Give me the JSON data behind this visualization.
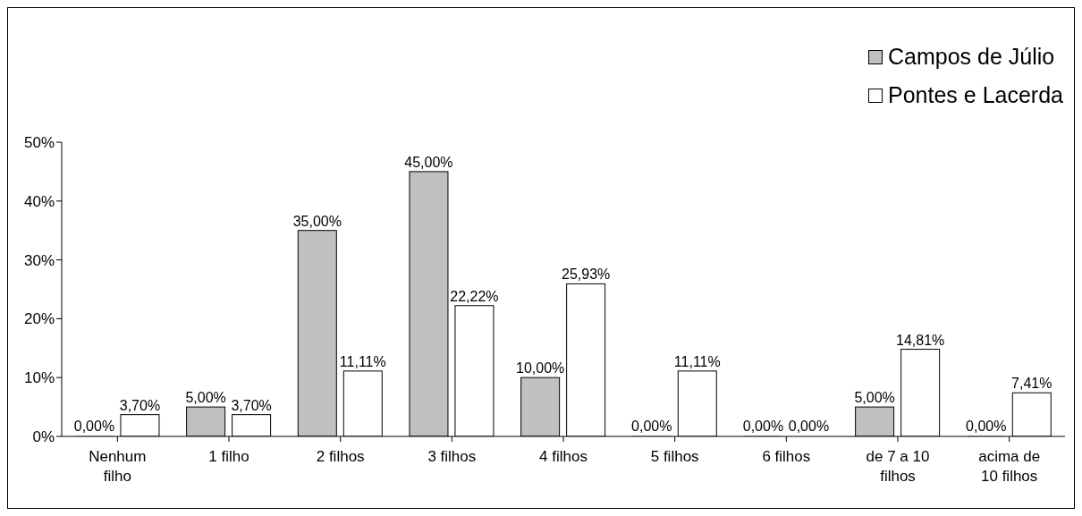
{
  "chart_data": {
    "type": "bar",
    "categories": [
      "Nenhum filho",
      "1 filho",
      "2 filhos",
      "3 filhos",
      "4 filhos",
      "5 filhos",
      "6 filhos",
      "de 7 a 10 filhos",
      "acima de 10 filhos"
    ],
    "series": [
      {
        "name": "Campos de Júlio",
        "color": "#c0c0c0",
        "values": [
          0,
          5,
          35,
          45,
          10,
          0,
          0,
          5,
          0
        ],
        "value_labels": [
          "0,00%",
          "5,00%",
          "35,00%",
          "45,00%",
          "10,00%",
          "0,00%",
          "0,00%",
          "5,00%",
          "0,00%"
        ]
      },
      {
        "name": "Pontes e Lacerda",
        "color": "#ffffff",
        "values": [
          3.7,
          3.7,
          11.11,
          22.22,
          25.93,
          11.11,
          0,
          14.81,
          7.41
        ],
        "value_labels": [
          "3,70%",
          "3,70%",
          "11,11%",
          "22,22%",
          "25,93%",
          "11,11%",
          "0,00%",
          "14,81%",
          "7,41%"
        ]
      }
    ],
    "ylim": [
      0,
      50
    ],
    "yticks": [
      {
        "value": 0,
        "label": "0%"
      },
      {
        "value": 10,
        "label": "10%"
      },
      {
        "value": 20,
        "label": "20%"
      },
      {
        "value": 30,
        "label": "30%"
      },
      {
        "value": 40,
        "label": "40%"
      },
      {
        "value": 50,
        "label": "50%"
      }
    ],
    "grid": false,
    "legend": "top right"
  }
}
